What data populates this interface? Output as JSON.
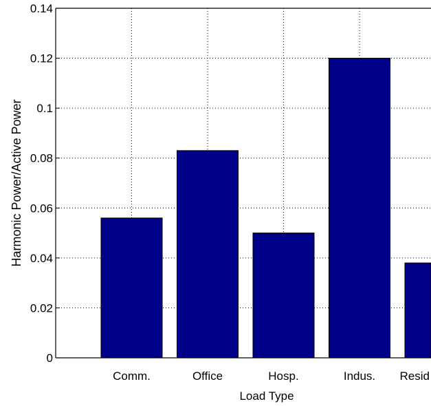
{
  "chart_data": {
    "type": "bar",
    "categories": [
      "Comm.",
      "Office",
      "Hosp.",
      "Indus.",
      "Resid"
    ],
    "values": [
      0.056,
      0.083,
      0.05,
      0.12,
      0.038
    ],
    "title": "",
    "xlabel": "Load Type",
    "ylabel": "Harmonic Power/Active Power",
    "ylim": [
      0,
      0.14
    ],
    "yticks": [
      "0",
      "0.02",
      "0.04",
      "0.06",
      "0.08",
      "0.1",
      "0.12",
      "0.14"
    ],
    "grid": true,
    "bar_color": "#00008b"
  }
}
